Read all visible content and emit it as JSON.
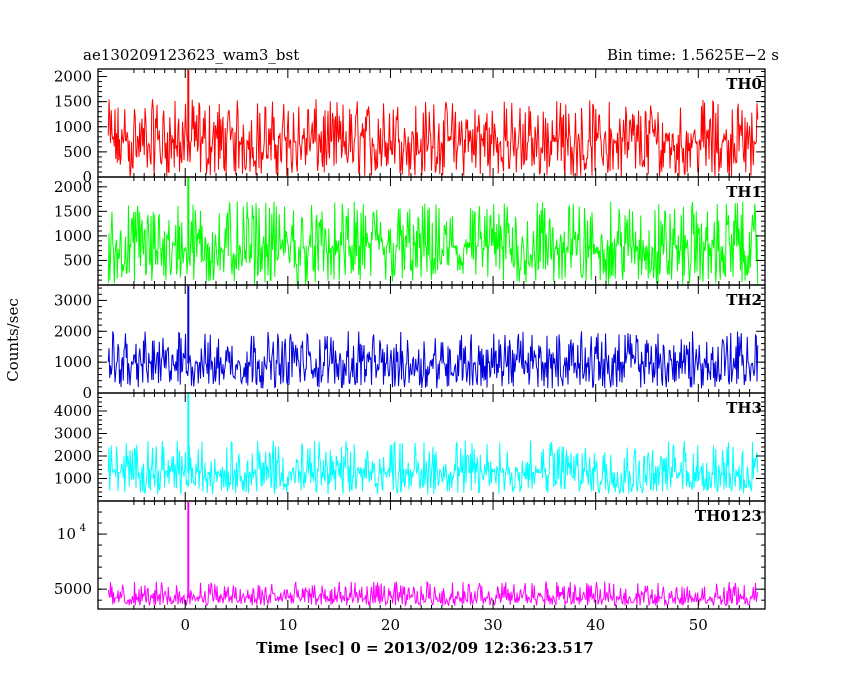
{
  "header": {
    "left_title": "ae130209123623_wam3_bst",
    "right_title": "Bin time: 1.5625E−2 s"
  },
  "axes": {
    "ylabel": "Counts/sec",
    "xlabel": "Time [sec] 0 = 2013/02/09 12:36:23.517",
    "x_ticks": [
      0,
      10,
      20,
      30,
      40,
      50
    ],
    "xlim": [
      -8.5,
      56.5
    ]
  },
  "chart_data": [
    {
      "type": "line",
      "series": [
        {
          "name": "TH0",
          "color": "#ff0000"
        }
      ],
      "ylim": [
        0,
        2150
      ],
      "y_ticks": [
        "0",
        "500",
        "1000",
        "1500",
        "2000"
      ],
      "y_tick_values": [
        0,
        500,
        1000,
        1500,
        2000
      ],
      "xrange": [
        -7.5,
        55.8
      ],
      "baseline": 700,
      "noise_lo": 0,
      "noise_hi": 1550,
      "peak": {
        "x": 0.3,
        "y": 2150
      }
    },
    {
      "type": "line",
      "series": [
        {
          "name": "TH1",
          "color": "#00ff00"
        }
      ],
      "ylim": [
        0,
        2200
      ],
      "y_ticks": [
        "500",
        "1000",
        "1500",
        "2000"
      ],
      "y_tick_values": [
        500,
        1000,
        1500,
        2000
      ],
      "xrange": [
        -7.5,
        55.8
      ],
      "baseline": 750,
      "noise_lo": 0,
      "noise_hi": 1700,
      "peak": {
        "x": 0.3,
        "y": 2200
      }
    },
    {
      "type": "line",
      "series": [
        {
          "name": "TH2",
          "color": "#0000dd"
        }
      ],
      "ylim": [
        0,
        3500
      ],
      "y_ticks": [
        "0",
        "1000",
        "2000",
        "3000"
      ],
      "y_tick_values": [
        0,
        1000,
        2000,
        3000
      ],
      "xrange": [
        -7.5,
        55.8
      ],
      "baseline": 950,
      "noise_lo": 150,
      "noise_hi": 2000,
      "peak": {
        "x": 0.3,
        "y": 3500
      }
    },
    {
      "type": "line",
      "series": [
        {
          "name": "TH3",
          "color": "#00ffff"
        }
      ],
      "ylim": [
        0,
        4800
      ],
      "y_ticks": [
        "1000",
        "2000",
        "3000",
        "4000"
      ],
      "y_tick_values": [
        1000,
        2000,
        3000,
        4000
      ],
      "xrange": [
        -7.5,
        55.8
      ],
      "baseline": 1250,
      "noise_lo": 300,
      "noise_hi": 2700,
      "peak": {
        "x": 0.3,
        "y": 4800
      }
    },
    {
      "type": "line",
      "series": [
        {
          "name": "TH0123",
          "color": "#ff00ff"
        }
      ],
      "ylim": [
        3200,
        13000
      ],
      "y_ticks": [
        "5000",
        "10^4"
      ],
      "y_tick_values": [
        5000,
        10000
      ],
      "xrange": [
        -7.5,
        55.8
      ],
      "baseline": 4200,
      "noise_lo": 3500,
      "noise_hi": 5700,
      "peak": {
        "x": 0.3,
        "y": 13000
      }
    }
  ]
}
